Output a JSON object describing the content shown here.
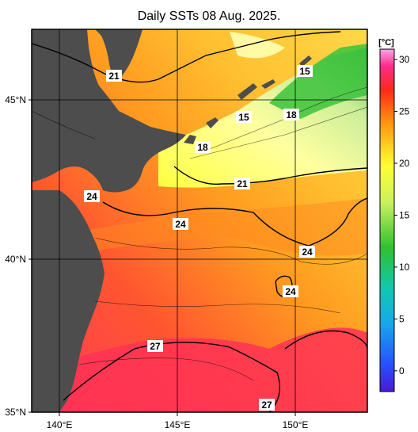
{
  "title": "Daily SSTs 08 Aug. 2025.",
  "map": {
    "lat_labels": [
      "45°N",
      "40°N",
      "35°N"
    ],
    "lon_labels": [
      "140°E",
      "145°E",
      "150°E"
    ],
    "contour_labels": [
      "21",
      "15",
      "18",
      "15",
      "18",
      "24",
      "21",
      "24",
      "24",
      "24",
      "27",
      "27"
    ]
  },
  "colorbar": {
    "unit": "[°C]",
    "ticks": [
      "30",
      "25",
      "20",
      "15",
      "10",
      "5",
      "0"
    ],
    "range": [
      -2,
      31
    ],
    "colors": {
      "ice": "#5b2bd8",
      "cold": "#2266ff",
      "cool": "#19b9d6",
      "green": "#35c23c",
      "yellow": "#ffff30",
      "orange": "#ff9a10",
      "red": "#ff3020",
      "hot": "#ff2a8a",
      "max": "#ffa6e8",
      "land": "#4d4d4d"
    }
  }
}
